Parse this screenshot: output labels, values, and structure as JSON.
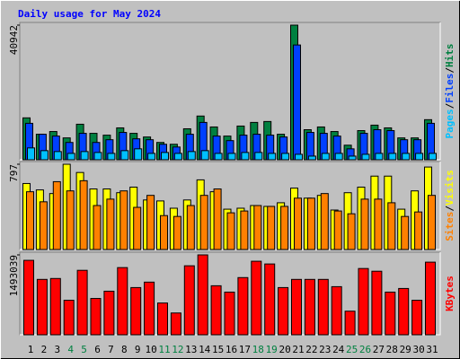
{
  "chart_data": [
    {
      "type": "bar",
      "title": "Daily usage for May 2024",
      "categories": [
        "1",
        "2",
        "3",
        "4",
        "5",
        "6",
        "7",
        "8",
        "9",
        "10",
        "11",
        "12",
        "13",
        "14",
        "15",
        "16",
        "17",
        "18",
        "19",
        "20",
        "21",
        "22",
        "23",
        "24",
        "25",
        "26",
        "27",
        "28",
        "29",
        "30",
        "31"
      ],
      "category_colors": [
        "#000000",
        "#000000",
        "#000000",
        "#008040",
        "#008040",
        "#000000",
        "#000000",
        "#000000",
        "#000000",
        "#000000",
        "#008040",
        "#008040",
        "#000000",
        "#000000",
        "#000000",
        "#000000",
        "#000000",
        "#008040",
        "#008040",
        "#000000",
        "#000000",
        "#000000",
        "#000000",
        "#000000",
        "#008040",
        "#008040",
        "#000000",
        "#000000",
        "#000000",
        "#000000",
        "#000000"
      ],
      "ylim": [
        0,
        40942
      ],
      "yticks": [
        40942
      ],
      "legend_separator": "/",
      "series": [
        {
          "name": "Hits",
          "color": "#008040",
          "values": [
            12742,
            7756,
            8587,
            6648,
            10803,
            8033,
            7479,
            9695,
            8033,
            6925,
            5263,
            4709,
            9418,
            13296,
            9972,
            7202,
            10249,
            11357,
            11634,
            7756,
            40942,
            9141,
            9972,
            8587,
            4432,
            8864,
            10526,
            9695,
            6648,
            6648,
            12188
          ]
        },
        {
          "name": "Files",
          "color": "#0040ff",
          "values": [
            11080,
            7756,
            7202,
            5263,
            8033,
            5263,
            6094,
            8310,
            6371,
            6094,
            4709,
            3878,
            7756,
            11357,
            7202,
            5817,
            7479,
            7756,
            7479,
            6925,
            34902,
            8310,
            8033,
            7202,
            3324,
            8033,
            9141,
            8864,
            6094,
            6094,
            11080
          ]
        },
        {
          "name": "Pages",
          "color": "#00c0ff",
          "values": [
            3601,
            2770,
            2493,
            1939,
            2493,
            2216,
            1939,
            2770,
            3324,
            1939,
            2216,
            1939,
            2493,
            2770,
            1939,
            1939,
            2216,
            2216,
            1939,
            1939,
            1662,
            1108,
            1939,
            1939,
            1108,
            1662,
            1939,
            1939,
            1939,
            1939,
            1939
          ]
        }
      ]
    },
    {
      "type": "bar",
      "ylim": [
        0,
        797
      ],
      "yticks": [
        797
      ],
      "legend_separator": "/",
      "series": [
        {
          "name": "Visits",
          "color": "#ffff00",
          "values": [
            617,
            557,
            523,
            797,
            720,
            566,
            566,
            531,
            583,
            463,
            454,
            386,
            463,
            651,
            540,
            377,
            386,
            411,
            403,
            437,
            574,
            480,
            506,
            369,
            531,
            583,
            686,
            686,
            377,
            548,
            771
          ]
        },
        {
          "name": "Sites",
          "color": "#ff8000",
          "values": [
            540,
            446,
            634,
            548,
            643,
            411,
            471,
            548,
            394,
            506,
            317,
            309,
            411,
            506,
            566,
            343,
            360,
            411,
            403,
            403,
            480,
            480,
            523,
            360,
            334,
            471,
            471,
            437,
            309,
            351,
            506
          ]
        }
      ]
    },
    {
      "type": "bar",
      "ylim": [
        0,
        1493039
      ],
      "yticks": [
        1493039
      ],
      "series": [
        {
          "name": "KBytes",
          "color": "#ff0000",
          "values": [
            1391212,
            1034926,
            1051892,
            644708,
            1204586,
            678640,
            814368,
            1255484,
            882232,
            984028,
            593810,
            407184,
            1289416,
            1493039,
            916164,
            797402,
            1068858,
            1374246,
            1323348,
            882232,
            1034926,
            1034926,
            1034926,
            899198,
            441116,
            1238518,
            1187620,
            797402,
            865266,
            644708,
            1357280
          ]
        }
      ]
    }
  ]
}
